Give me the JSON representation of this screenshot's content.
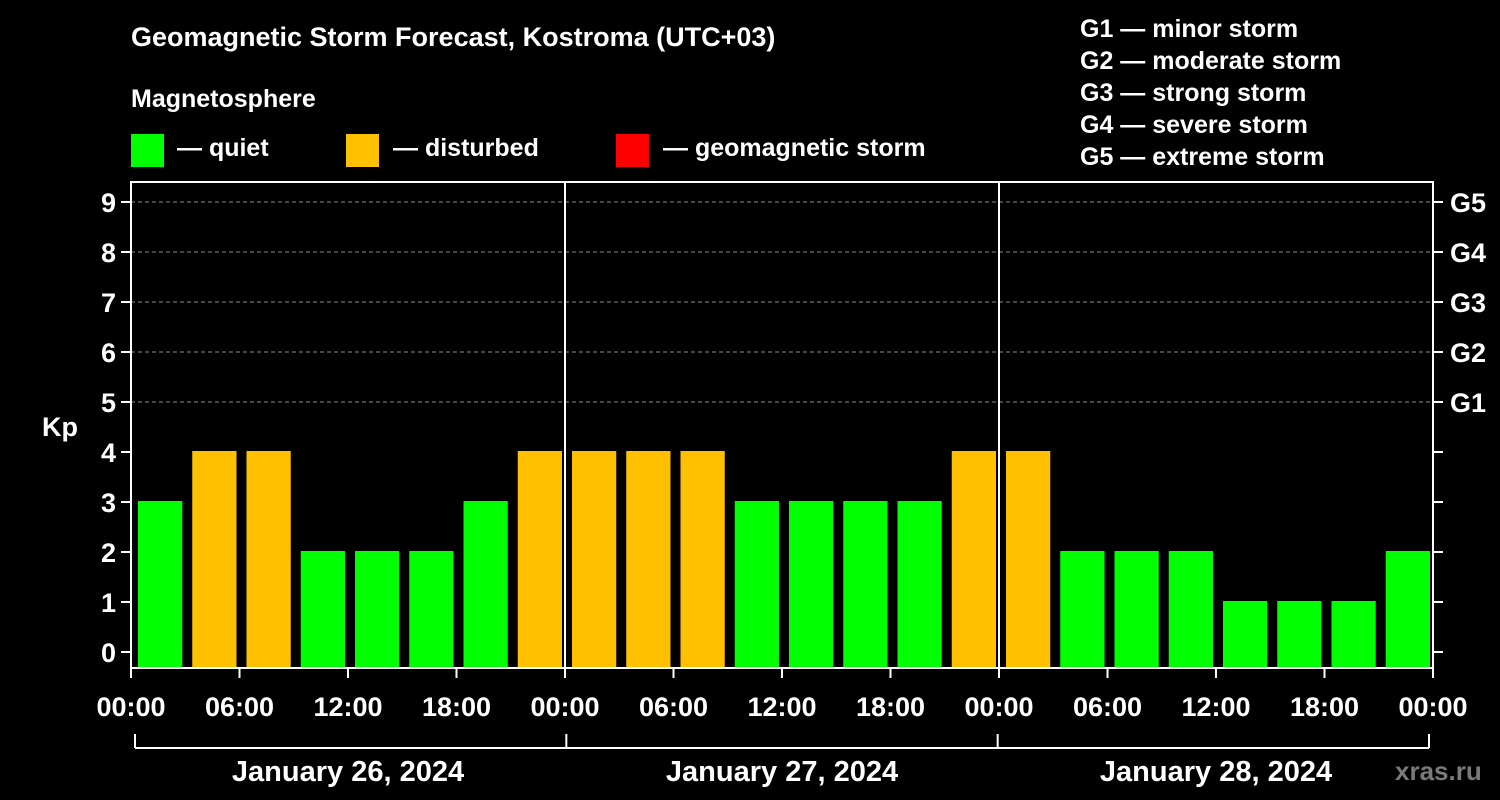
{
  "header": {
    "title": "Geomagnetic Storm Forecast, Kostroma (UTC+03)",
    "subtitle": "Magnetosphere"
  },
  "legend": [
    {
      "label": "— quiet",
      "color": "#00ff00"
    },
    {
      "label": "— disturbed",
      "color": "#ffc000"
    },
    {
      "label": "— geomagnetic storm",
      "color": "#ff0000"
    }
  ],
  "storm_levels": [
    "G1 — minor storm",
    "G2 — moderate storm",
    "G3 — strong storm",
    "G4 — severe storm",
    "G5 — extreme storm"
  ],
  "watermark": "xras.ru",
  "chart_data": {
    "type": "bar",
    "ylabel": "Kp",
    "ylim": [
      0,
      9
    ],
    "yticks": [
      "0",
      "1",
      "2",
      "3",
      "4",
      "5",
      "6",
      "7",
      "8",
      "9"
    ],
    "right_axis_labels": [
      {
        "kp": 5,
        "label": "G1"
      },
      {
        "kp": 6,
        "label": "G2"
      },
      {
        "kp": 7,
        "label": "G3"
      },
      {
        "kp": 8,
        "label": "G4"
      },
      {
        "kp": 9,
        "label": "G5"
      }
    ],
    "x_tick_labels": [
      "00:00",
      "06:00",
      "12:00",
      "18:00",
      "00:00",
      "06:00",
      "12:00",
      "18:00",
      "00:00",
      "06:00",
      "12:00",
      "18:00",
      "00:00"
    ],
    "days": [
      "January 26, 2024",
      "January 27, 2024",
      "January 28, 2024"
    ],
    "interval_hours": 3,
    "values": [
      3,
      4,
      4,
      2,
      2,
      2,
      3,
      4,
      4,
      4,
      4,
      3,
      3,
      3,
      3,
      4,
      4,
      2,
      2,
      2,
      1,
      1,
      1,
      2
    ],
    "colors": {
      "quiet": "#00ff00",
      "disturbed": "#ffc000",
      "storm": "#ff0000"
    },
    "grid": true
  }
}
